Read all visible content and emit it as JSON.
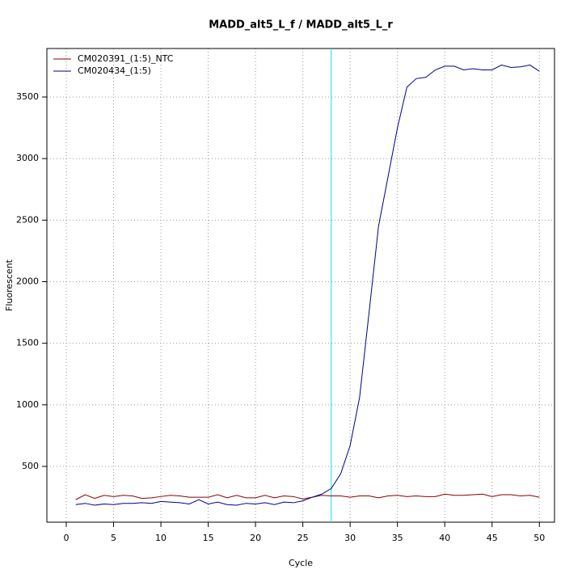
{
  "chart_data": {
    "type": "line",
    "title": "MADD_alt5_L_f / MADD_alt5_L_r",
    "x_label": "Cycle",
    "y_label": "Fluorescent",
    "x": [
      1,
      2,
      3,
      4,
      5,
      6,
      7,
      8,
      9,
      10,
      11,
      12,
      13,
      14,
      15,
      16,
      17,
      18,
      19,
      20,
      21,
      22,
      23,
      24,
      25,
      26,
      27,
      28,
      29,
      30,
      31,
      32,
      33,
      34,
      35,
      36,
      37,
      38,
      39,
      40,
      41,
      42,
      43,
      44,
      45,
      46,
      47,
      48,
      49,
      50
    ],
    "series": [
      {
        "name": "CM020391_(1:5)_NTC",
        "color": "#8b0000",
        "values": [
          230,
          270,
          240,
          265,
          255,
          265,
          260,
          240,
          245,
          255,
          265,
          260,
          250,
          250,
          250,
          270,
          245,
          265,
          245,
          245,
          265,
          245,
          260,
          255,
          235,
          250,
          265,
          260,
          260,
          250,
          260,
          260,
          245,
          260,
          265,
          255,
          260,
          255,
          255,
          275,
          265,
          265,
          270,
          275,
          255,
          270,
          270,
          260,
          265,
          250
        ]
      },
      {
        "name": "CM020434_(1:5)",
        "color": "#00008b",
        "values": [
          190,
          200,
          185,
          195,
          190,
          200,
          200,
          205,
          200,
          215,
          210,
          205,
          195,
          230,
          195,
          210,
          190,
          185,
          200,
          195,
          205,
          190,
          210,
          205,
          220,
          250,
          275,
          320,
          440,
          670,
          1060,
          1750,
          2450,
          2850,
          3250,
          3580,
          3650,
          3660,
          3720,
          3750,
          3750,
          3720,
          3730,
          3720,
          3720,
          3760,
          3740,
          3745,
          3760,
          3710
        ]
      }
    ],
    "threshold_x": 28,
    "threshold_color": "#00e5ee",
    "xlim": [
      -2.05,
      51.6
    ],
    "ylim": [
      47,
      3894
    ],
    "xticks": [
      0,
      5,
      10,
      15,
      20,
      25,
      30,
      35,
      40,
      45,
      50
    ],
    "yticks": [
      500,
      1000,
      1500,
      2000,
      2500,
      3000,
      3500
    ],
    "grid": true,
    "legend_position": "top-left"
  }
}
